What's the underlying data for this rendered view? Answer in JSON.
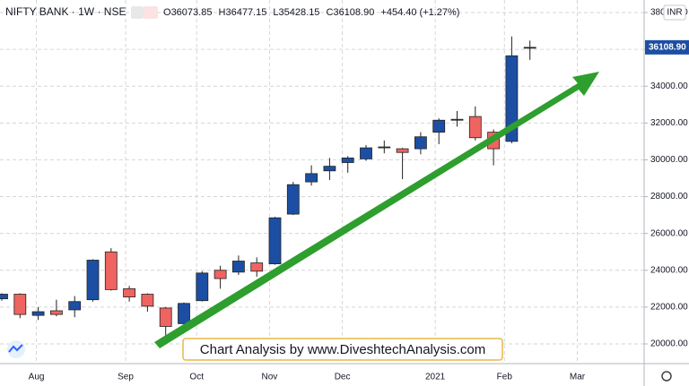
{
  "chart_data": {
    "type": "candlestick",
    "title": "NIFTY BANK · 1W · NSE",
    "ohlc_header": {
      "o_key": "O",
      "o": "36073.85",
      "h_key": "H",
      "h": "36477.15",
      "l_key": "L",
      "l": "35428.15",
      "c_key": "C",
      "c": "36108.90",
      "change": "+454.40 (+1.27%)"
    },
    "currency": "INR",
    "last_price_label": "36108.90",
    "annotation": "Chart Analysis by www.DiveshtechAnalysis.com",
    "categories": [
      null,
      null,
      null,
      null,
      null,
      null,
      null,
      null,
      null,
      null,
      null,
      null,
      null,
      null,
      null,
      null,
      null,
      null,
      null,
      null,
      null,
      null,
      null,
      null,
      null,
      null,
      null,
      null,
      null,
      null
    ],
    "open": [
      22450,
      22700,
      21550,
      21800,
      21850,
      22400,
      25000,
      23000,
      22700,
      21950,
      21100,
      22350,
      24000,
      23900,
      24400,
      24350,
      27050,
      28800,
      29400,
      29850,
      30050,
      30650,
      30600,
      30600,
      31500,
      32150,
      32350,
      31500,
      31000,
      36073.85
    ],
    "high": [
      22750,
      22750,
      22000,
      22400,
      22600,
      24600,
      25200,
      23150,
      22750,
      22000,
      22250,
      23950,
      24250,
      24800,
      24700,
      26900,
      28800,
      29700,
      30100,
      30200,
      30800,
      31050,
      30650,
      31500,
      32250,
      32650,
      32900,
      31650,
      36700,
      36477.15
    ],
    "low": [
      22350,
      21400,
      21300,
      21500,
      21450,
      22300,
      22900,
      22300,
      21750,
      20300,
      20900,
      22300,
      23000,
      23750,
      23650,
      24300,
      27000,
      28600,
      28900,
      29300,
      29950,
      30350,
      28950,
      30300,
      30850,
      31800,
      31050,
      29700,
      30900,
      35428.15
    ],
    "close": [
      22700,
      21600,
      21750,
      21600,
      22300,
      24550,
      22950,
      22550,
      22050,
      20950,
      22200,
      23850,
      23550,
      24500,
      23950,
      26850,
      28650,
      29250,
      29650,
      30100,
      30650,
      30700,
      30400,
      31250,
      32150,
      32200,
      31200,
      30600,
      35650,
      36108.9
    ],
    "up_color": "#1c4fa3",
    "down_color": "#ef6461",
    "ylim": [
      18930,
      38680
    ],
    "yticks": [
      {
        "value": 20000,
        "label": "20000.00"
      },
      {
        "value": 22000,
        "label": "22000.00"
      },
      {
        "value": 24000,
        "label": "24000.00"
      },
      {
        "value": 26000,
        "label": "26000.00"
      },
      {
        "value": 28000,
        "label": "28000.00"
      },
      {
        "value": 30000,
        "label": "30000.00"
      },
      {
        "value": 32000,
        "label": "32000.00"
      },
      {
        "value": 34000,
        "label": "34000.00"
      },
      {
        "value": 36000,
        "label": "36000.00"
      },
      {
        "value": 38000,
        "label": "38000.00"
      }
    ],
    "xticks": [
      {
        "value": 1.9,
        "label": "Aug"
      },
      {
        "value": 6.8,
        "label": "Sep"
      },
      {
        "value": 10.7,
        "label": "Oct"
      },
      {
        "value": 14.7,
        "label": "Nov"
      },
      {
        "value": 18.7,
        "label": "Dec"
      },
      {
        "value": 23.8,
        "label": "2021"
      },
      {
        "value": 27.6,
        "label": "Feb"
      },
      {
        "value": 31.6,
        "label": "Mar"
      }
    ],
    "grid": true
  }
}
